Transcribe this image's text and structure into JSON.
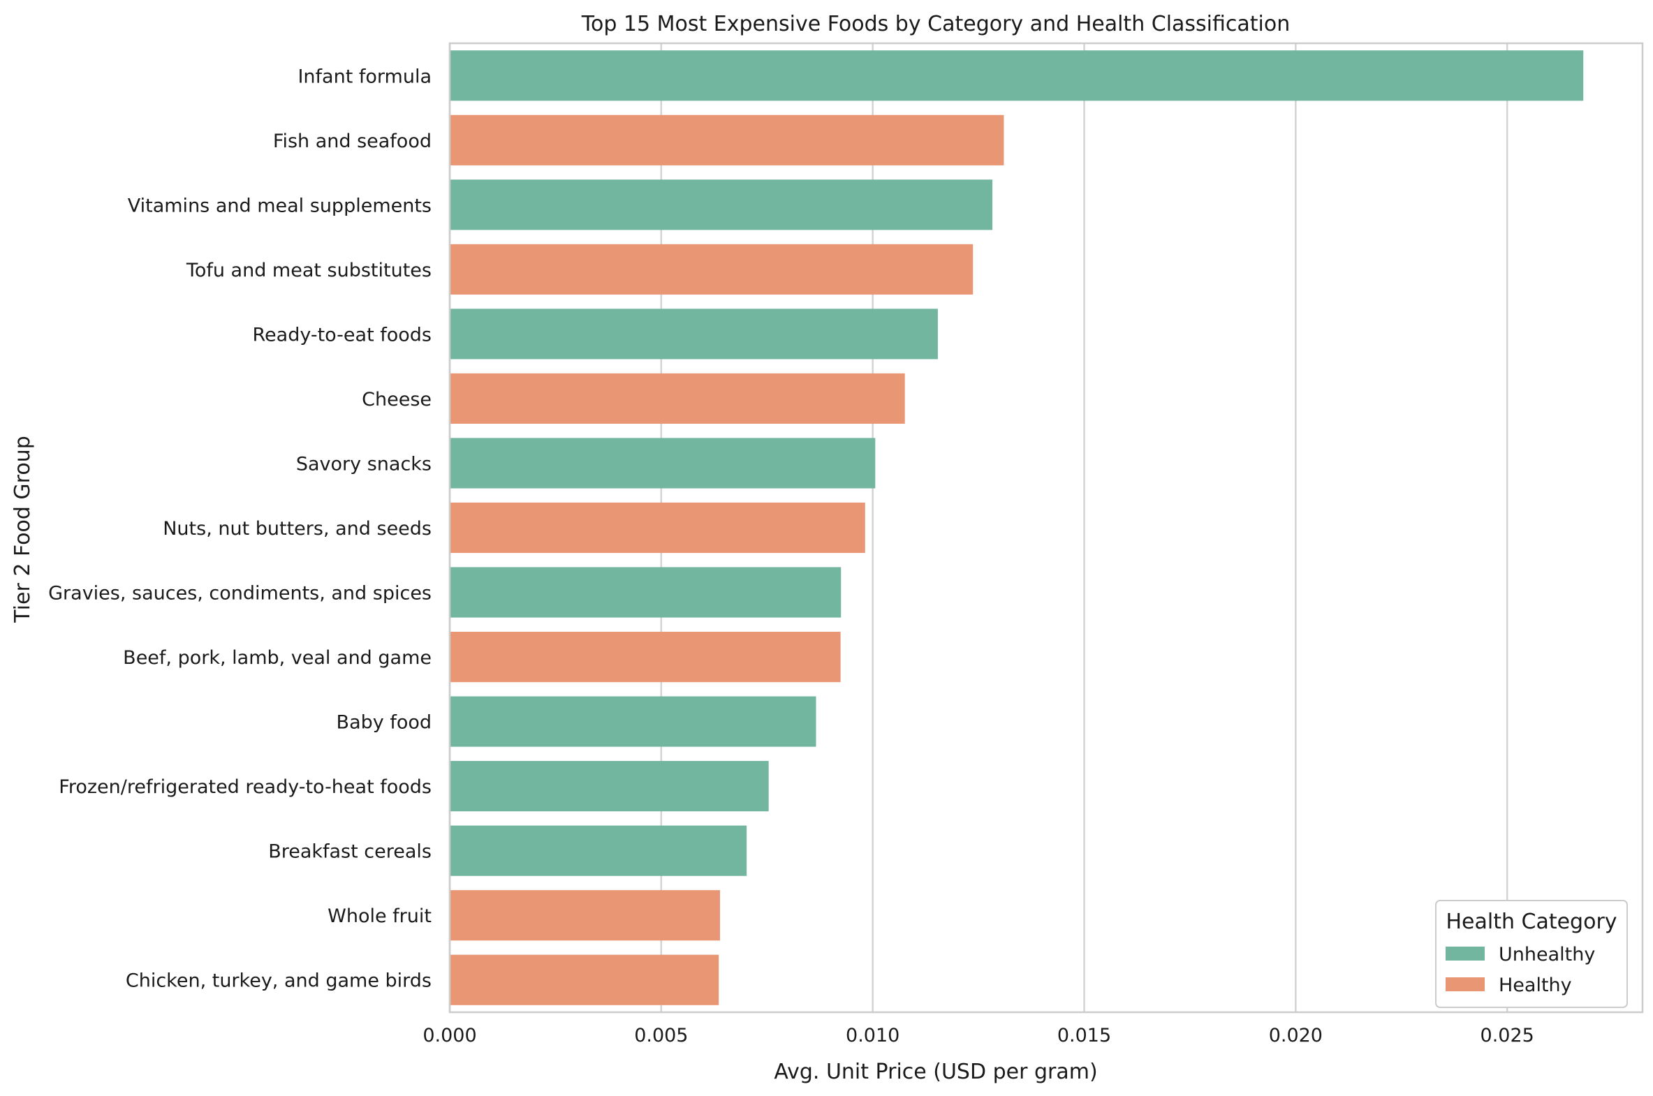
{
  "chart_data": {
    "type": "bar",
    "orientation": "horizontal",
    "title": "Top 15 Most Expensive Foods by Category and Health Classification",
    "xlabel": "Avg. Unit Price (USD per gram)",
    "ylabel": "Tier 2 Food Group",
    "xlim": [
      0,
      0.0282
    ],
    "xticks": [
      0.0,
      0.005,
      0.01,
      0.015,
      0.02,
      0.025
    ],
    "xtick_labels": [
      "0.000",
      "0.005",
      "0.010",
      "0.015",
      "0.020",
      "0.025"
    ],
    "grid": true,
    "categories": [
      "Infant formula",
      "Fish and seafood",
      "Vitamins and meal supplements",
      "Tofu and meat substitutes",
      "Ready-to-eat foods",
      "Cheese",
      "Savory snacks",
      "Nuts, nut butters, and seeds",
      "Gravies, sauces, condiments, and spices",
      "Beef, pork, lamb, veal and game",
      "Baby food",
      "Frozen/refrigerated ready-to-heat foods",
      "Breakfast cereals",
      "Whole fruit",
      "Chicken, turkey, and game birds"
    ],
    "values": [
      0.0268,
      0.0131,
      0.01283,
      0.01237,
      0.01154,
      0.01076,
      0.01006,
      0.00982,
      0.00925,
      0.00924,
      0.00866,
      0.00754,
      0.00702,
      0.00639,
      0.00636
    ],
    "health_category": [
      "Unhealthy",
      "Healthy",
      "Unhealthy",
      "Healthy",
      "Unhealthy",
      "Healthy",
      "Unhealthy",
      "Healthy",
      "Unhealthy",
      "Healthy",
      "Unhealthy",
      "Unhealthy",
      "Unhealthy",
      "Healthy",
      "Healthy"
    ],
    "legend": {
      "title": "Health Category",
      "position": "lower-right",
      "entries": [
        {
          "name": "Unhealthy",
          "color": "#73b6a0"
        },
        {
          "name": "Healthy",
          "color": "#e99675"
        }
      ]
    }
  }
}
